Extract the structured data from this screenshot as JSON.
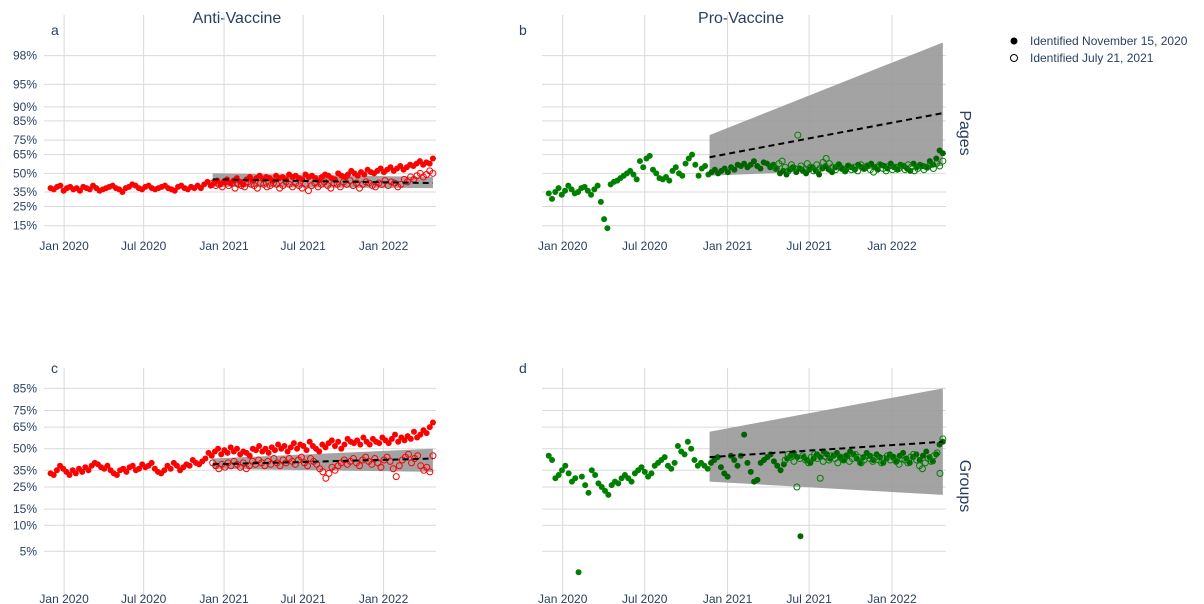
{
  "titles": {
    "left": "Anti-Vaccine",
    "right": "Pro-Vaccine"
  },
  "row_labels": {
    "top": "Pages",
    "bottom": "Groups"
  },
  "panel_letters": [
    "a",
    "b",
    "c",
    "d"
  ],
  "legend": [
    {
      "label": "Identified November 15, 2020",
      "marker": "filled"
    },
    {
      "label": "Identified July 21, 2021",
      "marker": "open"
    }
  ],
  "colors": {
    "anti": "#ff0000",
    "pro": "#008000",
    "pro_dark": "#006400",
    "band": "#999999",
    "grid": "#d9d9d9",
    "trend": "#000000"
  },
  "chart_data": [
    {
      "type": "scatter",
      "panel": "a",
      "title": "Anti-Vaccine",
      "row": "Pages",
      "color": "#ff0000",
      "x_ticks": [
        "Jan 2020",
        "Jul 2020",
        "Jan 2021",
        "Jul 2021",
        "Jan 2022"
      ],
      "y_ticks": [
        "15%",
        "25%",
        "35%",
        "50%",
        "65%",
        "75%",
        "85%",
        "90%",
        "95%",
        "98%"
      ],
      "xlim": [
        "2019-11-16",
        "2022-05-01"
      ],
      "y_scale": "logit",
      "series": [
        {
          "name": "Identified November 15, 2020",
          "marker": "filled",
          "start": "2019-12-01",
          "end": "2022-04-24",
          "values": [
            38,
            37,
            39,
            40,
            36,
            38,
            39,
            37,
            38,
            36,
            39,
            38,
            37,
            40,
            38,
            36,
            37,
            38,
            39,
            40,
            38,
            37,
            35,
            38,
            39,
            41,
            40,
            38,
            37,
            39,
            40,
            38,
            37,
            38,
            39,
            40,
            38,
            37,
            36,
            39,
            40,
            38,
            37,
            39,
            38,
            40,
            38,
            41,
            43,
            40,
            42,
            44,
            41,
            43,
            45,
            42,
            44,
            46,
            43,
            41,
            45,
            47,
            44,
            46,
            48,
            45,
            47,
            46,
            44,
            48,
            46,
            47,
            45,
            49,
            47,
            48,
            46,
            45,
            49,
            47,
            48,
            46,
            44,
            47,
            49,
            48,
            46,
            45,
            50,
            48,
            47,
            49,
            52,
            50,
            48,
            51,
            49,
            53,
            51,
            50,
            52,
            54,
            51,
            53,
            55,
            52,
            54,
            56,
            53,
            55,
            57,
            56,
            58,
            60,
            57,
            59,
            58,
            62
          ]
        },
        {
          "name": "Identified July 21, 2021",
          "marker": "open",
          "start": "2020-12-06",
          "end": "2022-04-24",
          "values": [
            42,
            40,
            41,
            39,
            43,
            40,
            42,
            38,
            41,
            40,
            39,
            43,
            41,
            40,
            38,
            42,
            41,
            39,
            40,
            42,
            41,
            38,
            40,
            43,
            41,
            39,
            42,
            40,
            38,
            41,
            36,
            40,
            42,
            39,
            41,
            43,
            40,
            38,
            42,
            41,
            39,
            43,
            41,
            44,
            40,
            42,
            38,
            41,
            43,
            42,
            40,
            39,
            42,
            41,
            44,
            40,
            43,
            42,
            39,
            41,
            45,
            43,
            47,
            45,
            48,
            50,
            47,
            49,
            52,
            50
          ]
        }
      ],
      "trend": {
        "start": "2020-12-06",
        "end": "2022-04-24",
        "y_start": 45,
        "y_end": 42
      },
      "band": {
        "start": "2020-12-06",
        "end": "2022-04-24",
        "lower_start": 39,
        "lower_end": 38,
        "upper_start": 50,
        "upper_end": 47
      }
    },
    {
      "type": "scatter",
      "panel": "b",
      "title": "Pro-Vaccine",
      "row": "Pages",
      "color": "#008000",
      "x_ticks": [
        "Jan 2020",
        "Jul 2020",
        "Jan 2021",
        "Jul 2021",
        "Jan 2022"
      ],
      "xlim": [
        "2019-11-16",
        "2022-05-01"
      ],
      "y_scale": "logit",
      "series": [
        {
          "name": "Identified November 15, 2020",
          "marker": "filled",
          "start": "2019-12-01",
          "end": "2022-04-24",
          "values": [
            34,
            30,
            35,
            38,
            33,
            36,
            40,
            37,
            34,
            35,
            38,
            39,
            36,
            33,
            37,
            40,
            28,
            18,
            14,
            41,
            43,
            44,
            46,
            48,
            50,
            52,
            49,
            45,
            60,
            55,
            62,
            64,
            53,
            50,
            46,
            45,
            47,
            44,
            52,
            55,
            50,
            48,
            58,
            62,
            65,
            57,
            48,
            54,
            56,
            49,
            51,
            53,
            50,
            52,
            54,
            51,
            55,
            53,
            57,
            56,
            58,
            55,
            57,
            60,
            56,
            54,
            59,
            58,
            55,
            57,
            54,
            50,
            52,
            49,
            53,
            55,
            51,
            54,
            52,
            50,
            53,
            55,
            52,
            49,
            54,
            56,
            53,
            51,
            55,
            57,
            54,
            52,
            56,
            55,
            53,
            57,
            55,
            54,
            56,
            58,
            55,
            53,
            57,
            56,
            54,
            58,
            55,
            53,
            57,
            56,
            54,
            52,
            58,
            55,
            57,
            56,
            55,
            60,
            57,
            62,
            68,
            66
          ]
        },
        {
          "name": "Identified July 21, 2021",
          "marker": "open",
          "start": "2021-04-11",
          "end": "2022-04-24",
          "values": [
            56,
            54,
            58,
            60,
            55,
            52,
            57,
            54,
            78,
            56,
            53,
            58,
            55,
            52,
            57,
            54,
            59,
            62,
            58,
            55,
            53,
            57,
            54,
            52,
            56,
            53,
            55,
            52,
            57,
            54,
            56,
            53,
            51,
            55,
            57,
            54,
            52,
            56,
            53,
            55,
            54,
            56,
            53,
            57,
            55,
            52,
            54,
            56,
            53,
            55,
            57,
            54,
            58,
            56,
            60
          ]
        }
      ],
      "trend": {
        "start": "2020-11-22",
        "end": "2022-04-24",
        "y_start": 63,
        "y_end": 88
      },
      "band": {
        "start": "2020-11-22",
        "end": "2022-04-24",
        "lower_start": 48,
        "lower_end": 56,
        "upper_start": 78,
        "upper_end": 98.7
      }
    },
    {
      "type": "scatter",
      "panel": "c",
      "title": "",
      "row": "Groups",
      "color": "#ff0000",
      "x_ticks": [
        "Jan 2020",
        "Jul 2020",
        "Jan 2021",
        "Jul 2021",
        "Jan 2022"
      ],
      "y_ticks": [
        "5%",
        "10%",
        "15%",
        "25%",
        "35%",
        "50%",
        "65%",
        "75%",
        "85%"
      ],
      "xlim": [
        "2019-11-16",
        "2022-05-01"
      ],
      "y_scale": "logit",
      "series": [
        {
          "name": "Identified November 15, 2020",
          "marker": "filled",
          "start": "2019-12-01",
          "end": "2022-04-24",
          "values": [
            33,
            32,
            35,
            38,
            36,
            34,
            32,
            35,
            33,
            36,
            34,
            37,
            35,
            38,
            40,
            39,
            37,
            36,
            38,
            35,
            33,
            32,
            35,
            36,
            34,
            37,
            38,
            35,
            36,
            39,
            37,
            38,
            40,
            36,
            34,
            33,
            35,
            38,
            36,
            40,
            38,
            35,
            37,
            39,
            38,
            42,
            40,
            39,
            41,
            43,
            47,
            45,
            48,
            50,
            46,
            49,
            47,
            51,
            48,
            50,
            46,
            48,
            47,
            45,
            50,
            49,
            52,
            48,
            50,
            47,
            51,
            49,
            53,
            50,
            52,
            48,
            51,
            54,
            50,
            53,
            52,
            49,
            55,
            52,
            50,
            48,
            53,
            51,
            54,
            56,
            52,
            55,
            50,
            53,
            57,
            55,
            54,
            56,
            53,
            58,
            55,
            53,
            57,
            55,
            54,
            58,
            56,
            54,
            57,
            60,
            55,
            58,
            56,
            59,
            57,
            62,
            58,
            60,
            63,
            61,
            65,
            68
          ]
        },
        {
          "name": "Identified July 21, 2021",
          "marker": "open",
          "start": "2020-12-06",
          "end": "2022-04-24",
          "values": [
            40,
            38,
            36,
            39,
            37,
            40,
            38,
            41,
            39,
            37,
            40,
            36,
            38,
            41,
            39,
            42,
            40,
            38,
            41,
            39,
            43,
            40,
            38,
            42,
            40,
            43,
            41,
            39,
            42,
            44,
            40,
            38,
            43,
            41,
            39,
            36,
            34,
            30,
            33,
            37,
            35,
            38,
            40,
            42,
            39,
            41,
            43,
            40,
            38,
            42,
            44,
            41,
            39,
            43,
            40,
            37,
            42,
            44,
            41,
            36,
            31,
            38,
            42,
            44,
            46,
            40,
            43,
            45,
            38,
            35,
            37,
            34,
            45
          ]
        }
      ],
      "trend": {
        "start": "2020-12-06",
        "end": "2022-04-24",
        "y_start": 39,
        "y_end": 43
      },
      "band": {
        "start": "2020-12-06",
        "end": "2022-04-24",
        "lower_start": 36,
        "lower_end": 34,
        "upper_start": 43,
        "upper_end": 50
      }
    },
    {
      "type": "scatter",
      "panel": "d",
      "title": "",
      "row": "Groups",
      "color": "#008000",
      "x_ticks": [
        "Jan 2020",
        "Jul 2020",
        "Jan 2021",
        "Jul 2021",
        "Jan 2022"
      ],
      "xlim": [
        "2019-11-16",
        "2022-05-01"
      ],
      "y_scale": "logit",
      "series": [
        {
          "name": "Identified November 15, 2020",
          "marker": "filled",
          "start": "2019-12-01",
          "end": "2022-04-24",
          "values": [
            45,
            42,
            30,
            32,
            35,
            38,
            33,
            28,
            30,
            2.8,
            31,
            26,
            22,
            35,
            32,
            27,
            25,
            23,
            21,
            26,
            28,
            27,
            30,
            32,
            30,
            28,
            33,
            35,
            37,
            34,
            31,
            33,
            38,
            40,
            42,
            44,
            38,
            36,
            40,
            52,
            48,
            46,
            55,
            50,
            42,
            38,
            40,
            38,
            36,
            40,
            42,
            44,
            37,
            33,
            31,
            45,
            42,
            38,
            45,
            60,
            40,
            34,
            28,
            29,
            40,
            42,
            44,
            46,
            41,
            38,
            35,
            39,
            43,
            45,
            47,
            44,
            7.5,
            44,
            42,
            40,
            43,
            46,
            44,
            48,
            46,
            43,
            45,
            47,
            44,
            42,
            45,
            48,
            46,
            43,
            40,
            44,
            47,
            45,
            42,
            46,
            44,
            40,
            43,
            46,
            44,
            41,
            45,
            47,
            43,
            40,
            44,
            46,
            42,
            45,
            48,
            44,
            41,
            46,
            53,
            55
          ]
        },
        {
          "name": "Identified July 21, 2021",
          "marker": "open",
          "start": "2021-05-09",
          "end": "2022-04-24",
          "values": [
            42,
            46,
            44,
            41,
            25,
            43,
            45,
            42,
            40,
            44,
            46,
            43,
            30,
            41,
            44,
            42,
            45,
            43,
            40,
            44,
            42,
            45,
            41,
            43,
            46,
            44,
            40,
            42,
            45,
            43,
            41,
            44,
            42,
            40,
            43,
            45,
            42,
            44,
            41,
            39,
            43,
            42,
            40,
            44,
            46,
            42,
            38,
            36,
            40,
            43,
            41,
            45,
            47,
            33,
            57
          ]
        }
      ],
      "trend": {
        "start": "2020-11-22",
        "end": "2022-04-24",
        "y_start": 44,
        "y_end": 55
      },
      "band": {
        "start": "2020-11-22",
        "end": "2022-04-24",
        "lower_start": 28,
        "lower_end": 21,
        "upper_start": 62,
        "upper_end": 85
      }
    }
  ]
}
